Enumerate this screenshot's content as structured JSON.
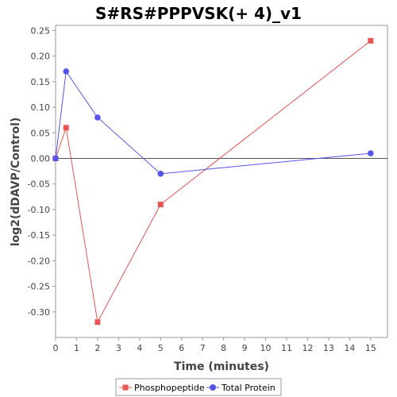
{
  "chart_data": {
    "type": "line",
    "title": "S#RS#PPPVSK(+ 4)_v1",
    "xlabel": "Time (minutes)",
    "ylabel": "log2(dDAVP/Control)",
    "xlim": [
      0,
      15.8
    ],
    "ylim": [
      -0.35,
      0.26
    ],
    "xticks": [
      0,
      1,
      2,
      3,
      4,
      5,
      6,
      7,
      8,
      9,
      10,
      11,
      12,
      13,
      14,
      15
    ],
    "yticks": [
      0.25,
      0.2,
      0.15,
      0.1,
      0.05,
      0.0,
      -0.05,
      -0.1,
      -0.15,
      -0.2,
      -0.25,
      -0.3
    ],
    "ytick_labels": [
      "0.25",
      "0.20",
      "0.15",
      "0.10",
      "0.05",
      "0.00",
      "-0.05",
      "-0.10",
      "-0.15",
      "-0.20",
      "-0.25",
      "-0.30"
    ],
    "grid": false,
    "zero_line": true,
    "legend_position": "bottom",
    "series": [
      {
        "name": "Phosphopeptide",
        "color": "#e85555",
        "marker": "square",
        "x": [
          0,
          0.5,
          2,
          5,
          15
        ],
        "y": [
          0.0,
          0.06,
          -0.32,
          -0.09,
          0.23
        ]
      },
      {
        "name": "Total Protein",
        "color": "#5555ee",
        "marker": "circle",
        "x": [
          0,
          0.5,
          2,
          5,
          15
        ],
        "y": [
          0.0,
          0.17,
          0.08,
          -0.03,
          0.01
        ]
      }
    ]
  }
}
